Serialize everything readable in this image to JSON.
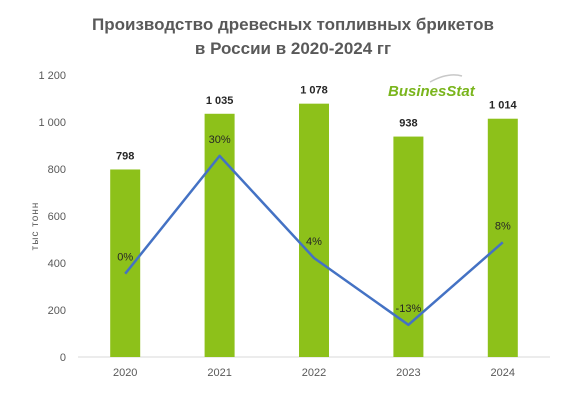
{
  "chart_data": {
    "type": "bar",
    "title_lines": [
      "Производство древесных топливных брикетов",
      "в России в 2020-2024 гг"
    ],
    "ylabel": "тыс тонн",
    "xlabel": "",
    "categories": [
      "2020",
      "2021",
      "2022",
      "2023",
      "2024"
    ],
    "series": [
      {
        "type": "bar",
        "values": [
          798,
          1035,
          1078,
          938,
          1014
        ],
        "value_labels": [
          "798",
          "1 035",
          "1 078",
          "938",
          "1 014"
        ],
        "color": "#8dc11a"
      },
      {
        "type": "line",
        "values": [
          0,
          30,
          4,
          -13,
          8
        ],
        "value_labels": [
          "0%",
          "30%",
          "4%",
          "-13%",
          "8%"
        ],
        "color": "#4472c4"
      }
    ],
    "yticks": [
      0,
      200,
      400,
      600,
      800,
      1000,
      1200
    ],
    "ytick_labels": [
      "0",
      "200",
      "400",
      "600",
      "800",
      "1 000",
      "1 200"
    ],
    "ylim": [
      0,
      1200
    ],
    "line_axis_range": [
      -21.2,
      50.6
    ],
    "grid": false,
    "legend": "none"
  },
  "watermark": {
    "text": "BusinesStat",
    "color": "#7ab51d"
  }
}
